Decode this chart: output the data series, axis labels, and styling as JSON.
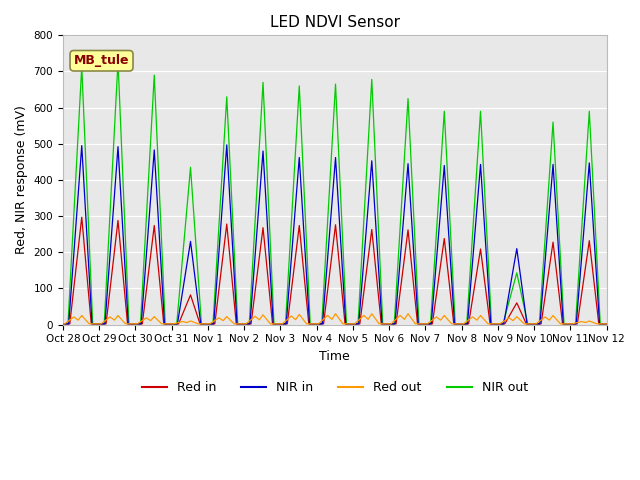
{
  "title": "LED NDVI Sensor",
  "ylabel": "Red, NIR response (mV)",
  "xlabel": "Time",
  "ylim": [
    0,
    800
  ],
  "background_color": "#ffffff",
  "plot_bg_color": "#e8e8e8",
  "annotation_text": "MB_tule",
  "annotation_box_color": "#ffff99",
  "annotation_box_edge": "#888844",
  "annotation_text_color": "#880000",
  "tick_labels": [
    "Oct 28",
    "Oct 29",
    "Oct 30",
    "Oct 31",
    "Nov 1",
    "Nov 2",
    "Nov 3",
    "Nov 4",
    "Nov 5",
    "Nov 6",
    "Nov 7",
    "Nov 8",
    "Nov 9",
    "Nov 10",
    "Nov 11",
    "Nov 12"
  ],
  "colors": {
    "red_in": "#cc0000",
    "nir_in": "#0000cc",
    "red_out": "#ff9900",
    "nir_out": "#00cc00"
  },
  "legend": {
    "labels": [
      "Red in",
      "NIR in",
      "Red out",
      "NIR out"
    ],
    "colors": [
      "#cc0000",
      "#0000cc",
      "#ff9900",
      "#00cc00"
    ]
  },
  "daily_peaks": {
    "nir_out": [
      714,
      728,
      690,
      435,
      630,
      670,
      660,
      665,
      678,
      625,
      590,
      590,
      143,
      560,
      590
    ],
    "nir_in": [
      495,
      492,
      483,
      230,
      497,
      480,
      462,
      462,
      453,
      445,
      440,
      443,
      210,
      443,
      447
    ],
    "red_in": [
      297,
      288,
      274,
      82,
      278,
      268,
      274,
      276,
      263,
      262,
      238,
      209,
      60,
      228,
      232
    ],
    "red_out": [
      25,
      25,
      22,
      10,
      22,
      27,
      28,
      30,
      30,
      30,
      25,
      25,
      22,
      25,
      10
    ]
  }
}
